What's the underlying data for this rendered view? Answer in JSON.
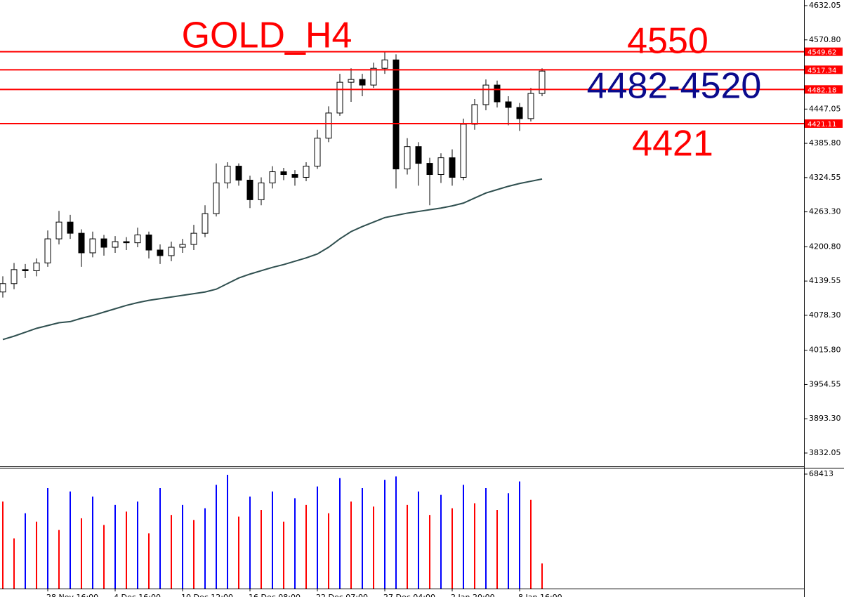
{
  "chart_data": {
    "type": "candlestick",
    "title": "GOLD_H4",
    "categories": [
      null,
      null,
      null,
      null,
      "28 Nov 16:00",
      null,
      null,
      null,
      null,
      null,
      "4 Dec 16:00",
      null,
      null,
      null,
      null,
      null,
      "10 Dec 12:00",
      null,
      null,
      null,
      null,
      null,
      "16 Dec 08:00",
      null,
      null,
      null,
      null,
      null,
      "22 Dec 07:00",
      null,
      null,
      null,
      null,
      null,
      "27 Dec 04:00",
      null,
      null,
      null,
      null,
      null,
      "2 Jan 20:00",
      null,
      null,
      null,
      null,
      null,
      "8 Jan 16:00",
      null,
      null
    ],
    "open": [
      4120,
      4135,
      4160,
      4158,
      4172,
      4215,
      4245,
      4225,
      4190,
      4215,
      4200,
      4210,
      4208,
      4222,
      4195,
      4185,
      4200,
      4205,
      4225,
      4260,
      4315,
      4345,
      4320,
      4285,
      4315,
      4335,
      4330,
      4325,
      4345,
      4395,
      4440,
      4495,
      4500,
      4490,
      4520,
      4535,
      4340,
      4380,
      4350,
      4330,
      4360,
      4325,
      4420,
      4455,
      4490,
      4460,
      4450,
      4430,
      4475
    ],
    "high": [
      4148,
      4172,
      4170,
      4180,
      4230,
      4265,
      4258,
      4232,
      4228,
      4222,
      4220,
      4218,
      4235,
      4228,
      4205,
      4210,
      4215,
      4240,
      4275,
      4350,
      4352,
      4350,
      4328,
      4325,
      4345,
      4342,
      4338,
      4352,
      4410,
      4452,
      4510,
      4520,
      4510,
      4530,
      4549,
      4545,
      4395,
      4388,
      4360,
      4368,
      4375,
      4430,
      4465,
      4500,
      4498,
      4470,
      4458,
      4485,
      4520
    ],
    "low": [
      4110,
      4125,
      4145,
      4148,
      4165,
      4205,
      4215,
      4165,
      4182,
      4185,
      4190,
      4195,
      4200,
      4180,
      4170,
      4175,
      4190,
      4195,
      4218,
      4255,
      4305,
      4310,
      4270,
      4275,
      4305,
      4320,
      4310,
      4318,
      4340,
      4388,
      4435,
      4460,
      4470,
      4485,
      4510,
      4305,
      4330,
      4310,
      4275,
      4315,
      4310,
      4320,
      4410,
      4445,
      4450,
      4418,
      4408,
      4425,
      4470
    ],
    "close": [
      4135,
      4160,
      4158,
      4172,
      4215,
      4245,
      4225,
      4190,
      4215,
      4200,
      4210,
      4208,
      4222,
      4195,
      4185,
      4200,
      4205,
      4225,
      4260,
      4315,
      4345,
      4320,
      4285,
      4315,
      4335,
      4330,
      4325,
      4345,
      4395,
      4440,
      4495,
      4500,
      4490,
      4520,
      4535,
      4340,
      4380,
      4350,
      4330,
      4360,
      4325,
      4420,
      4455,
      4490,
      4460,
      4450,
      4430,
      4475,
      4515
    ],
    "ma": {
      "color": "#2f4f4f",
      "values": [
        4035,
        4041,
        4048,
        4055,
        4060,
        4065,
        4067,
        4073,
        4078,
        4084,
        4090,
        4096,
        4101,
        4105,
        4108,
        4111,
        4114,
        4117,
        4120,
        4125,
        4135,
        4145,
        4152,
        4158,
        4164,
        4169,
        4175,
        4181,
        4188,
        4200,
        4215,
        4228,
        4237,
        4245,
        4253,
        4257,
        4261,
        4264,
        4267,
        4270,
        4274,
        4279,
        4288,
        4297,
        4303,
        4309,
        4314,
        4318,
        4322
      ]
    },
    "ylim": [
      3832.05,
      4632.05
    ],
    "yticks": [
      4632.05,
      {
        "value": 4570.8,
        "label": "4570.80"
      },
      4447.05,
      {
        "value": 4385.8,
        "label": "4385.80"
      },
      4324.55,
      {
        "value": 4263.3,
        "label": "4263.30"
      },
      {
        "value": 4200.8,
        "label": "4200.80"
      },
      4139.55,
      {
        "value": 4078.3,
        "label": "4078.30"
      },
      {
        "value": 4015.8,
        "label": "4015.80"
      },
      3954.55,
      {
        "value": 3893.3,
        "label": "3893.30"
      },
      3832.05
    ],
    "levels": [
      4549.62,
      4517.34,
      4482.18,
      4421.11
    ],
    "level_color": "#ff0000",
    "annotations": [
      {
        "text": "4550",
        "color": "#ff0000"
      },
      {
        "text": "4482-4520",
        "color": "#0a0a8c"
      },
      {
        "text": "4421",
        "color": "#ff0000"
      }
    ],
    "title_color": "#ff0000",
    "volume": {
      "values": [
        52000,
        30000,
        45000,
        40000,
        60000,
        35000,
        58000,
        42000,
        55000,
        38000,
        50000,
        46000,
        52000,
        33000,
        60000,
        44000,
        50000,
        41000,
        48000,
        62000,
        68000,
        43000,
        55000,
        47000,
        58000,
        40000,
        54000,
        50000,
        61000,
        45000,
        66000,
        52000,
        60000,
        49000,
        65000,
        67000,
        50000,
        58000,
        44000,
        56000,
        48000,
        62000,
        51000,
        60000,
        47000,
        57000,
        64000,
        53000,
        15000
      ],
      "ylim": [
        0,
        68413
      ],
      "yticks": [
        68413
      ],
      "up_color": "#0000ff",
      "down_color": "#ff0000"
    }
  }
}
